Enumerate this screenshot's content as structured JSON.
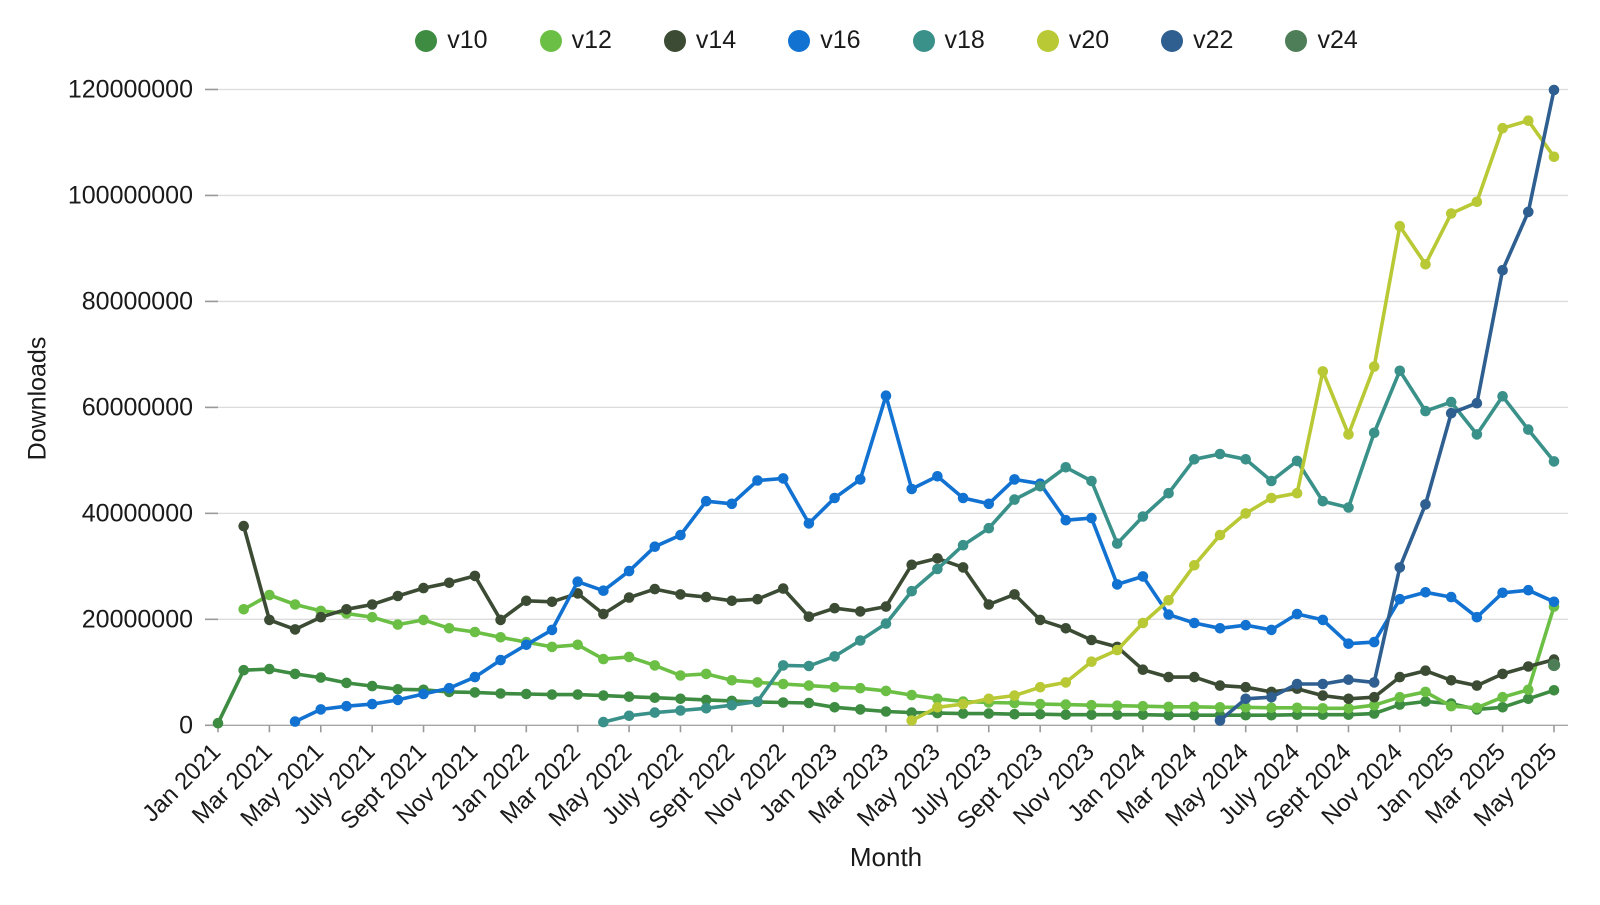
{
  "page": {
    "background": "#ffffff",
    "text_color": "#1a1a1a"
  },
  "chart_data": {
    "type": "line",
    "title": "",
    "xlabel": "Month",
    "ylabel": "Downloads",
    "grid": true,
    "legend_position": "top-center",
    "ylim": [
      0,
      120000000
    ],
    "y_ticks": [
      0,
      20000000,
      40000000,
      60000000,
      80000000,
      100000000,
      120000000
    ],
    "x_tick_labels": [
      "Jan 2021",
      "Mar 2021",
      "May 2021",
      "July 2021",
      "Sept 2021",
      "Nov 2021",
      "Jan 2022",
      "Mar 2022",
      "May 2022",
      "July 2022",
      "Sept 2022",
      "Nov 2022",
      "Jan 2023",
      "Mar 2023",
      "May 2023",
      "July 2023",
      "Sept 2023",
      "Nov 2023",
      "Jan 2024",
      "Mar 2024",
      "May 2024",
      "July 2024",
      "Sept 2024",
      "Nov 2024",
      "Jan 2025",
      "Mar 2025",
      "May 2025"
    ],
    "x_tick_month_indices": [
      0,
      2,
      4,
      6,
      8,
      10,
      12,
      14,
      16,
      18,
      20,
      22,
      24,
      26,
      28,
      30,
      32,
      34,
      36,
      38,
      40,
      42,
      44,
      46,
      48,
      50,
      52
    ],
    "months": [
      "Jan 2021",
      "Feb 2021",
      "Mar 2021",
      "Apr 2021",
      "May 2021",
      "Jun 2021",
      "Jul 2021",
      "Aug 2021",
      "Sep 2021",
      "Oct 2021",
      "Nov 2021",
      "Dec 2021",
      "Jan 2022",
      "Feb 2022",
      "Mar 2022",
      "Apr 2022",
      "May 2022",
      "Jun 2022",
      "Jul 2022",
      "Aug 2022",
      "Sep 2022",
      "Oct 2022",
      "Nov 2022",
      "Dec 2022",
      "Jan 2023",
      "Feb 2023",
      "Mar 2023",
      "Apr 2023",
      "May 2023",
      "Jun 2023",
      "Jul 2023",
      "Aug 2023",
      "Sep 2023",
      "Oct 2023",
      "Nov 2023",
      "Dec 2023",
      "Jan 2024",
      "Feb 2024",
      "Mar 2024",
      "Apr 2024",
      "May 2024",
      "Jun 2024",
      "Jul 2024",
      "Aug 2024",
      "Sep 2024",
      "Oct 2024",
      "Nov 2024",
      "Dec 2024",
      "Jan 2025",
      "Feb 2025",
      "Mar 2025",
      "Apr 2025",
      "May 2025"
    ],
    "series": [
      {
        "name": "v10",
        "color": "#3d8c42",
        "values": [
          400000,
          10400000,
          10600000,
          9700000,
          9000000,
          8000000,
          7400000,
          6800000,
          6700000,
          6300000,
          6200000,
          6000000,
          5900000,
          5800000,
          5800000,
          5600000,
          5400000,
          5200000,
          5000000,
          4800000,
          4600000,
          4400000,
          4300000,
          4200000,
          3400000,
          3000000,
          2600000,
          2400000,
          2300000,
          2200000,
          2200000,
          2100000,
          2100000,
          2000000,
          2000000,
          2000000,
          2000000,
          1900000,
          1900000,
          1900000,
          1900000,
          1900000,
          2000000,
          2000000,
          2000000,
          2200000,
          3900000,
          4500000,
          4100000,
          3000000,
          3400000,
          5000000,
          6600000
        ]
      },
      {
        "name": "v12",
        "color": "#6cbf45",
        "values": [
          null,
          21900000,
          24600000,
          22800000,
          21600000,
          21100000,
          20400000,
          19000000,
          19900000,
          18300000,
          17600000,
          16600000,
          15700000,
          14800000,
          15200000,
          12500000,
          12900000,
          11300000,
          9400000,
          9700000,
          8500000,
          8100000,
          7800000,
          7500000,
          7200000,
          7000000,
          6500000,
          5700000,
          5000000,
          4500000,
          4300000,
          4200000,
          4000000,
          3900000,
          3800000,
          3700000,
          3600000,
          3500000,
          3500000,
          3400000,
          3400000,
          3300000,
          3300000,
          3200000,
          3200000,
          3800000,
          5300000,
          6300000,
          3600000,
          3300000,
          5300000,
          6700000,
          22400000
        ]
      },
      {
        "name": "v14",
        "color": "#3c4c34",
        "values": [
          null,
          37600000,
          19900000,
          18100000,
          20400000,
          21900000,
          22800000,
          24400000,
          25900000,
          26900000,
          28200000,
          19900000,
          23500000,
          23300000,
          24900000,
          21000000,
          24100000,
          25700000,
          24700000,
          24200000,
          23500000,
          23800000,
          25800000,
          20500000,
          22100000,
          21500000,
          22400000,
          30300000,
          31500000,
          29800000,
          22800000,
          24700000,
          19900000,
          18300000,
          16100000,
          14800000,
          10500000,
          9100000,
          9100000,
          7500000,
          7200000,
          6300000,
          6900000,
          5600000,
          5000000,
          5300000,
          9100000,
          10300000,
          8500000,
          7500000,
          9700000,
          11100000,
          12400000
        ]
      },
      {
        "name": "v16",
        "color": "#1272d2",
        "values": [
          null,
          null,
          null,
          700000,
          3000000,
          3600000,
          4000000,
          4800000,
          5900000,
          7000000,
          9100000,
          12300000,
          15200000,
          18000000,
          27100000,
          25400000,
          29100000,
          33700000,
          35900000,
          42300000,
          41800000,
          46200000,
          46600000,
          38100000,
          42900000,
          46400000,
          62200000,
          44600000,
          47000000,
          42900000,
          41800000,
          46400000,
          45600000,
          38700000,
          39100000,
          26600000,
          28100000,
          20900000,
          19300000,
          18300000,
          18900000,
          18000000,
          21000000,
          19900000,
          15400000,
          15700000,
          23800000,
          25100000,
          24200000,
          20400000,
          25000000,
          25500000,
          23300000
        ]
      },
      {
        "name": "v18",
        "color": "#3a9189",
        "values": [
          null,
          null,
          null,
          null,
          null,
          null,
          null,
          null,
          null,
          null,
          null,
          null,
          null,
          null,
          null,
          600000,
          1800000,
          2400000,
          2800000,
          3200000,
          3800000,
          4500000,
          11300000,
          11200000,
          13000000,
          16000000,
          19200000,
          25300000,
          29500000,
          34000000,
          37200000,
          42600000,
          45100000,
          48700000,
          46100000,
          34300000,
          39400000,
          43800000,
          50200000,
          51200000,
          50200000,
          46100000,
          49900000,
          42300000,
          41100000,
          55200000,
          66900000,
          59300000,
          61000000,
          54900000,
          62100000,
          55800000,
          49800000
        ]
      },
      {
        "name": "v20",
        "color": "#b9c935",
        "values": [
          null,
          null,
          null,
          null,
          null,
          null,
          null,
          null,
          null,
          null,
          null,
          null,
          null,
          null,
          null,
          null,
          null,
          null,
          null,
          null,
          null,
          null,
          null,
          null,
          null,
          null,
          null,
          900000,
          3400000,
          4000000,
          5000000,
          5600000,
          7200000,
          8100000,
          12000000,
          14200000,
          19300000,
          23600000,
          30200000,
          35900000,
          40000000,
          42900000,
          43800000,
          66800000,
          54900000,
          67700000,
          94200000,
          87000000,
          96600000,
          98800000,
          112700000,
          114100000,
          107300000
        ]
      },
      {
        "name": "v22",
        "color": "#2e5f90",
        "values": [
          null,
          null,
          null,
          null,
          null,
          null,
          null,
          null,
          null,
          null,
          null,
          null,
          null,
          null,
          null,
          null,
          null,
          null,
          null,
          null,
          null,
          null,
          null,
          null,
          null,
          null,
          null,
          null,
          null,
          null,
          null,
          null,
          null,
          null,
          null,
          null,
          null,
          null,
          null,
          900000,
          5000000,
          5300000,
          7800000,
          7800000,
          8600000,
          8100000,
          29800000,
          41700000,
          58900000,
          60800000,
          85900000,
          96900000,
          119900000
        ]
      },
      {
        "name": "v24",
        "color": "#4e7e57",
        "values": [
          null,
          null,
          null,
          null,
          null,
          null,
          null,
          null,
          null,
          null,
          null,
          null,
          null,
          null,
          null,
          null,
          null,
          null,
          null,
          null,
          null,
          null,
          null,
          null,
          null,
          null,
          null,
          null,
          null,
          null,
          null,
          null,
          null,
          null,
          null,
          null,
          null,
          null,
          null,
          null,
          null,
          null,
          null,
          null,
          null,
          null,
          null,
          null,
          null,
          null,
          null,
          null,
          11400000
        ]
      }
    ],
    "axis_colors": {
      "gridline": "#dcdcdc",
      "tick": "#9a9a9a",
      "axis_line": "#a6a6a6"
    }
  }
}
